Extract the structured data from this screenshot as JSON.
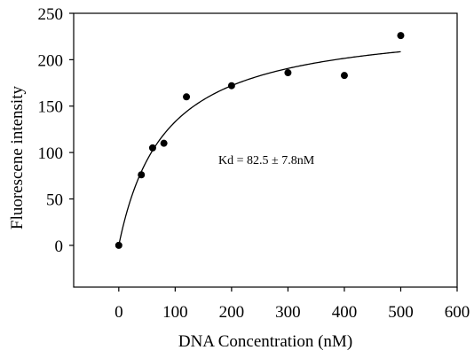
{
  "chart_data": {
    "type": "scatter",
    "title": "",
    "xlabel": "DNA Concentration (nM)",
    "ylabel": "Fluorescene intensity",
    "xlim": [
      -80,
      600
    ],
    "ylim": [
      -45,
      250
    ],
    "xticks": [
      0,
      100,
      200,
      300,
      400,
      500,
      600
    ],
    "yticks": [
      0,
      50,
      100,
      150,
      200,
      250
    ],
    "grid": false,
    "legend": "none",
    "annotation": "Kd = 82.5 ± 7.8nM",
    "series": [
      {
        "points": [
          {
            "x": 0,
            "y": 0
          },
          {
            "x": 40,
            "y": 76
          },
          {
            "x": 60,
            "y": 105
          },
          {
            "x": 80,
            "y": 110
          },
          {
            "x": 120,
            "y": 160
          },
          {
            "x": 200,
            "y": 172
          },
          {
            "x": 300,
            "y": 186
          },
          {
            "x": 400,
            "y": 183
          },
          {
            "x": 500,
            "y": 226
          }
        ]
      }
    ],
    "fit": {
      "model": "Bmax*x/(Kd+x)",
      "Kd": 82.5,
      "Bmax": 243,
      "x_range": [
        0,
        500
      ]
    },
    "colors": {
      "points": "#000000",
      "fit_line": "#000000",
      "axes": "#000000"
    }
  }
}
